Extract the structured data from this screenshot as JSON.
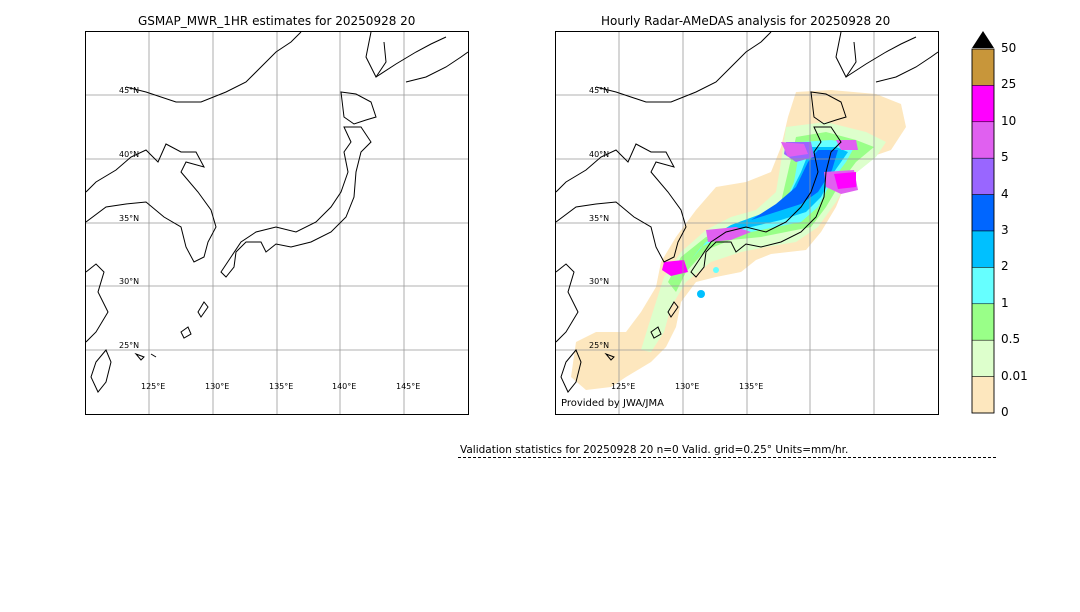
{
  "left_panel": {
    "title": "GSMAP_MWR_1HR estimates for 20250928 20",
    "lat_labels": [
      "45°N",
      "40°N",
      "35°N",
      "30°N",
      "25°N"
    ],
    "lon_labels": [
      "125°E",
      "130°E",
      "135°E",
      "140°E",
      "145°E"
    ]
  },
  "right_panel": {
    "title": "Hourly Radar-AMeDAS analysis for 20250928 20",
    "lat_labels": [
      "45°N",
      "40°N",
      "35°N",
      "30°N",
      "25°N"
    ],
    "lon_labels": [
      "125°E",
      "130°E",
      "135°E"
    ],
    "credit": "Provided by JWA/JMA"
  },
  "colorbar": {
    "labels": [
      "50",
      "25",
      "10",
      "5",
      "4",
      "3",
      "2",
      "1",
      "0.5",
      "0.01",
      "0"
    ],
    "colors": [
      "#c8963a",
      "#ff00ff",
      "#e060f0",
      "#9966ff",
      "#0066ff",
      "#00c0ff",
      "#66ffff",
      "#99ff88",
      "#ddffcc",
      "#fde7be"
    ],
    "extend_color": "#000000"
  },
  "stats": {
    "text": "Validation statistics for 20250928 20  n=0 Valid. grid=0.25° Units=mm/hr."
  }
}
